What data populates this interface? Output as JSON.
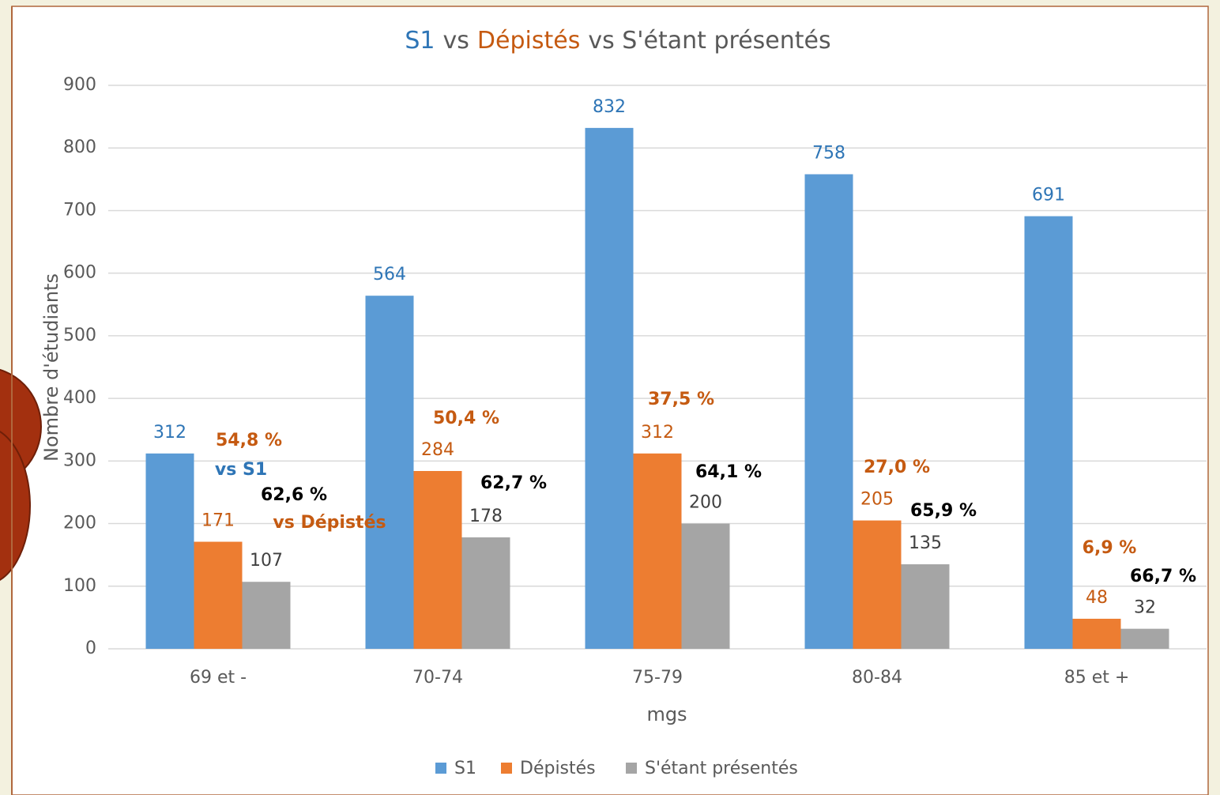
{
  "chart_data": {
    "type": "bar",
    "title_parts": [
      {
        "text": "S1",
        "color": "#2e75b6"
      },
      {
        "text": "vs",
        "color": "#595959"
      },
      {
        "text": "Dépistés",
        "color": "#c55a11"
      },
      {
        "text": "vs S'étant présentés",
        "color": "#595959"
      }
    ],
    "x_label": "mgs",
    "y_label": "Nombre d'étudiants",
    "categories": [
      "69 et -",
      "70-74",
      "75-79",
      "80-84",
      "85 et +"
    ],
    "series": [
      {
        "name": "S1",
        "color": "#5b9bd5",
        "label_color": "#2e75b6",
        "values": [
          312,
          564,
          832,
          758,
          691
        ]
      },
      {
        "name": "Dépistés",
        "color": "#ed7d31",
        "label_color": "#c55a11",
        "values": [
          171,
          284,
          312,
          205,
          48
        ]
      },
      {
        "name": "S'étant présentés",
        "color": "#a5a5a5",
        "label_color": "#404040",
        "values": [
          107,
          178,
          200,
          135,
          32
        ]
      }
    ],
    "ylim": [
      0,
      900
    ],
    "yticks": [
      0,
      100,
      200,
      300,
      400,
      500,
      600,
      700,
      800,
      900
    ],
    "grid": true,
    "annotations": {
      "depistes_vs_s1": {
        "color": "#c55a11",
        "texts": [
          "54,8 %",
          "50,4 %",
          "37,5 %",
          "27,0 %",
          "6,9 %"
        ]
      },
      "presentes_vs_depistes": {
        "color": "#000000",
        "texts": [
          "62,6 %",
          "62,7 %",
          "64,1 %",
          "65,9 %",
          "66,7 %"
        ]
      },
      "notes": [
        {
          "text": "vs S1",
          "color": "#2e75b6"
        },
        {
          "text": "vs Dépistés",
          "color": "#c55a11"
        }
      ]
    },
    "legend": "bottom"
  }
}
